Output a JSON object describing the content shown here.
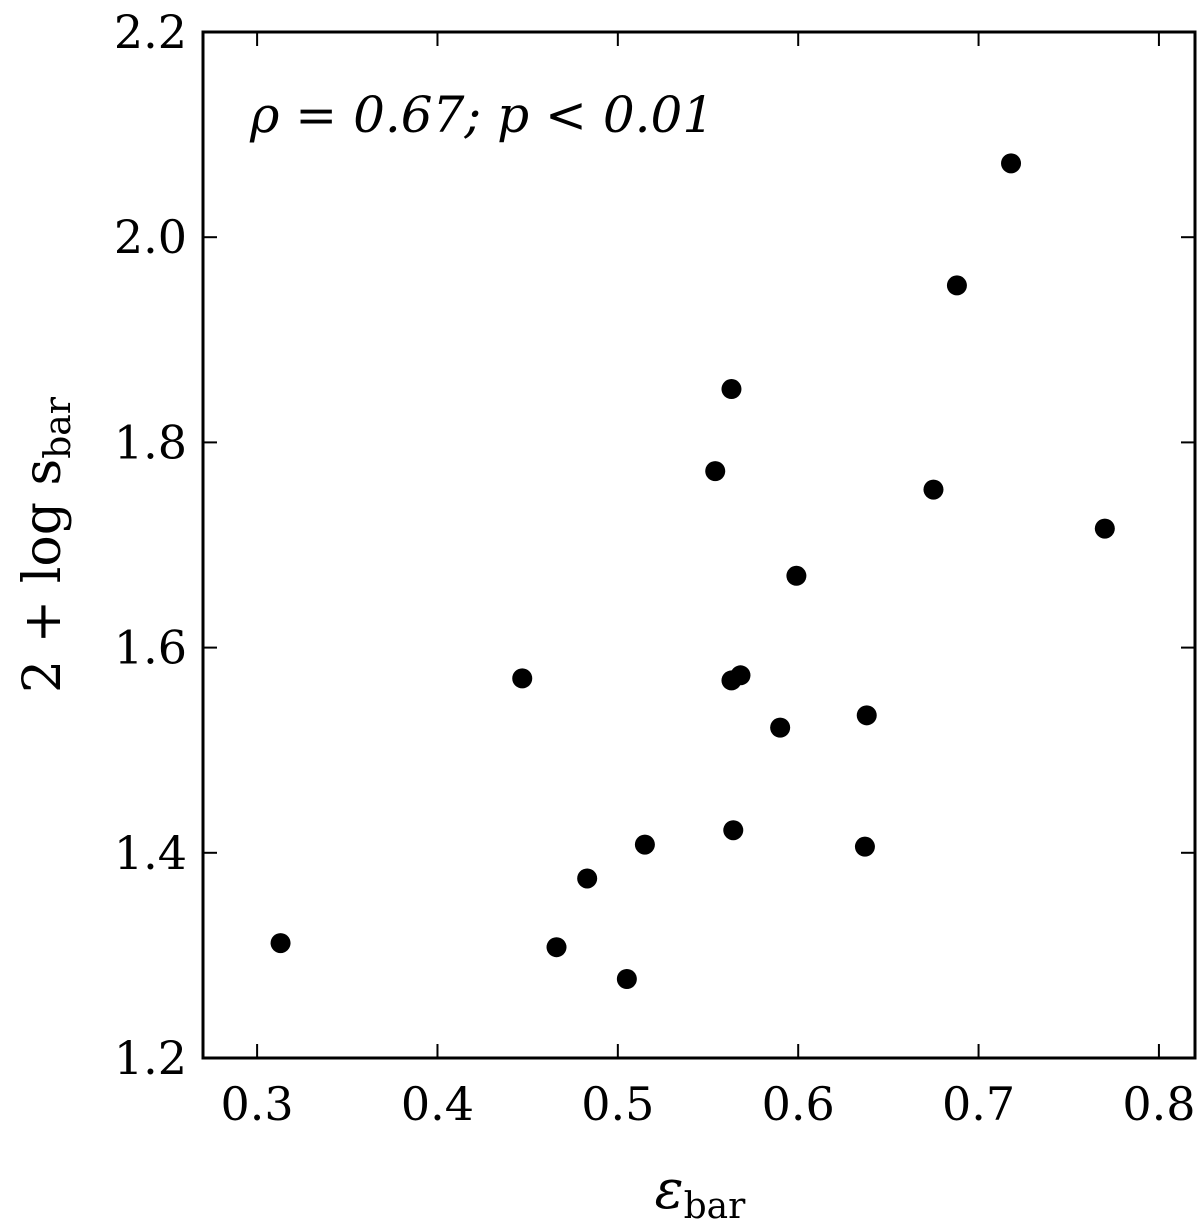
{
  "chart_data": {
    "type": "scatter",
    "title": "",
    "xlabel": "ε",
    "xlabel_sub": "bar",
    "ylabel": "2 + log s",
    "ylabel_sub": "bar",
    "xlim": [
      0.27,
      0.82
    ],
    "ylim": [
      1.2,
      2.2
    ],
    "xticks": [
      0.3,
      0.4,
      0.5,
      0.6,
      0.7,
      0.8
    ],
    "xtick_labels": [
      "0.3",
      "0.4",
      "0.5",
      "0.6",
      "0.7",
      "0.8"
    ],
    "yticks": [
      1.2,
      1.4,
      1.6,
      1.8,
      2.0,
      2.2
    ],
    "ytick_labels": [
      "1.2",
      "1.4",
      "1.6",
      "1.8",
      "2.0",
      "2.2"
    ],
    "grid": false,
    "annotation": "ρ = 0.67; p < 0.01",
    "marker_color": "#000000",
    "points": [
      {
        "x": 0.313,
        "y": 1.312
      },
      {
        "x": 0.447,
        "y": 1.57
      },
      {
        "x": 0.466,
        "y": 1.308
      },
      {
        "x": 0.483,
        "y": 1.375
      },
      {
        "x": 0.505,
        "y": 1.277
      },
      {
        "x": 0.515,
        "y": 1.408
      },
      {
        "x": 0.554,
        "y": 1.772
      },
      {
        "x": 0.563,
        "y": 1.852
      },
      {
        "x": 0.563,
        "y": 1.568
      },
      {
        "x": 0.564,
        "y": 1.422
      },
      {
        "x": 0.568,
        "y": 1.573
      },
      {
        "x": 0.59,
        "y": 1.522
      },
      {
        "x": 0.599,
        "y": 1.67
      },
      {
        "x": 0.637,
        "y": 1.406
      },
      {
        "x": 0.638,
        "y": 1.534
      },
      {
        "x": 0.675,
        "y": 1.754
      },
      {
        "x": 0.688,
        "y": 1.953
      },
      {
        "x": 0.718,
        "y": 2.072
      },
      {
        "x": 0.77,
        "y": 1.716
      }
    ]
  }
}
